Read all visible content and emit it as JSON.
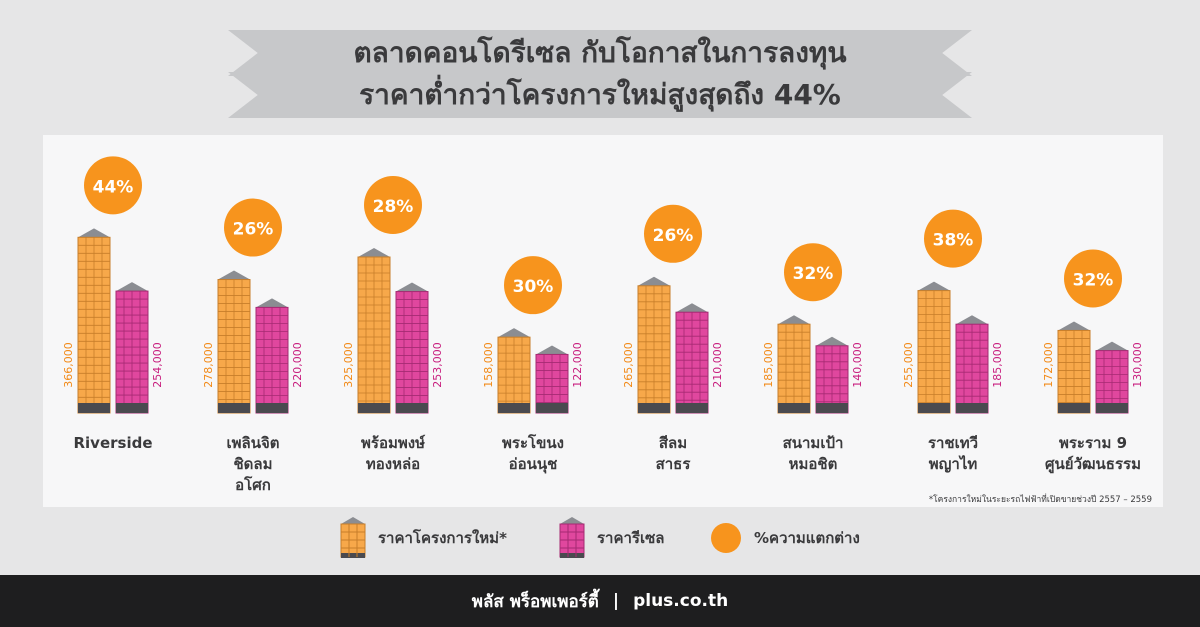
{
  "title": {
    "line1": "ตลาดคอนโดรีเซล กับโอกาสในการลงทุน",
    "line2": "ราคาต่ำกว่าโครงการใหม่สูงสุดถึง 44%"
  },
  "chart_data": {
    "type": "bar",
    "categories": [
      [
        "Riverside"
      ],
      [
        "เพลินจิต",
        "ชิดลม",
        "อโศก"
      ],
      [
        "พร้อมพงษ์",
        "ทองหล่อ"
      ],
      [
        "พระโขนง",
        "อ่อนนุช"
      ],
      [
        "สีลม",
        "สาธร"
      ],
      [
        "สนามเป้า",
        "หมอชิต"
      ],
      [
        "ราชเทวี",
        "พญาไท"
      ],
      [
        "พระราม 9",
        "ศูนย์วัฒนธรรม"
      ]
    ],
    "series": [
      {
        "name": "ราคาโครงการใหม่*",
        "color": "#f7a84a",
        "values": [
          366000,
          278000,
          325000,
          158000,
          265000,
          185000,
          255000,
          172000
        ],
        "labels": [
          "366,000",
          "278,000",
          "325,000",
          "158,000",
          "265,000",
          "185,000",
          "255,000",
          "172,000"
        ]
      },
      {
        "name": "ราคารีเซล",
        "color": "#e0479e",
        "values": [
          254000,
          220000,
          253000,
          122000,
          210000,
          140000,
          185000,
          130000
        ],
        "labels": [
          "254,000",
          "220,000",
          "253,000",
          "122,000",
          "210,000",
          "140,000",
          "185,000",
          "130,000"
        ]
      }
    ],
    "differences": [
      "44%",
      "26%",
      "28%",
      "30%",
      "26%",
      "32%",
      "38%",
      "32%"
    ],
    "difference_name": "%ความแตกต่าง",
    "difference_color": "#f7941d"
  },
  "footnote": "*โครงการใหม่ในระยะรถไฟฟ้าที่เปิดขายช่วงปี 2557 – 2559",
  "footer": {
    "brand": "พลัส พร็อพเพอร์ตี้",
    "separator": "|",
    "site": "plus.co.th"
  }
}
